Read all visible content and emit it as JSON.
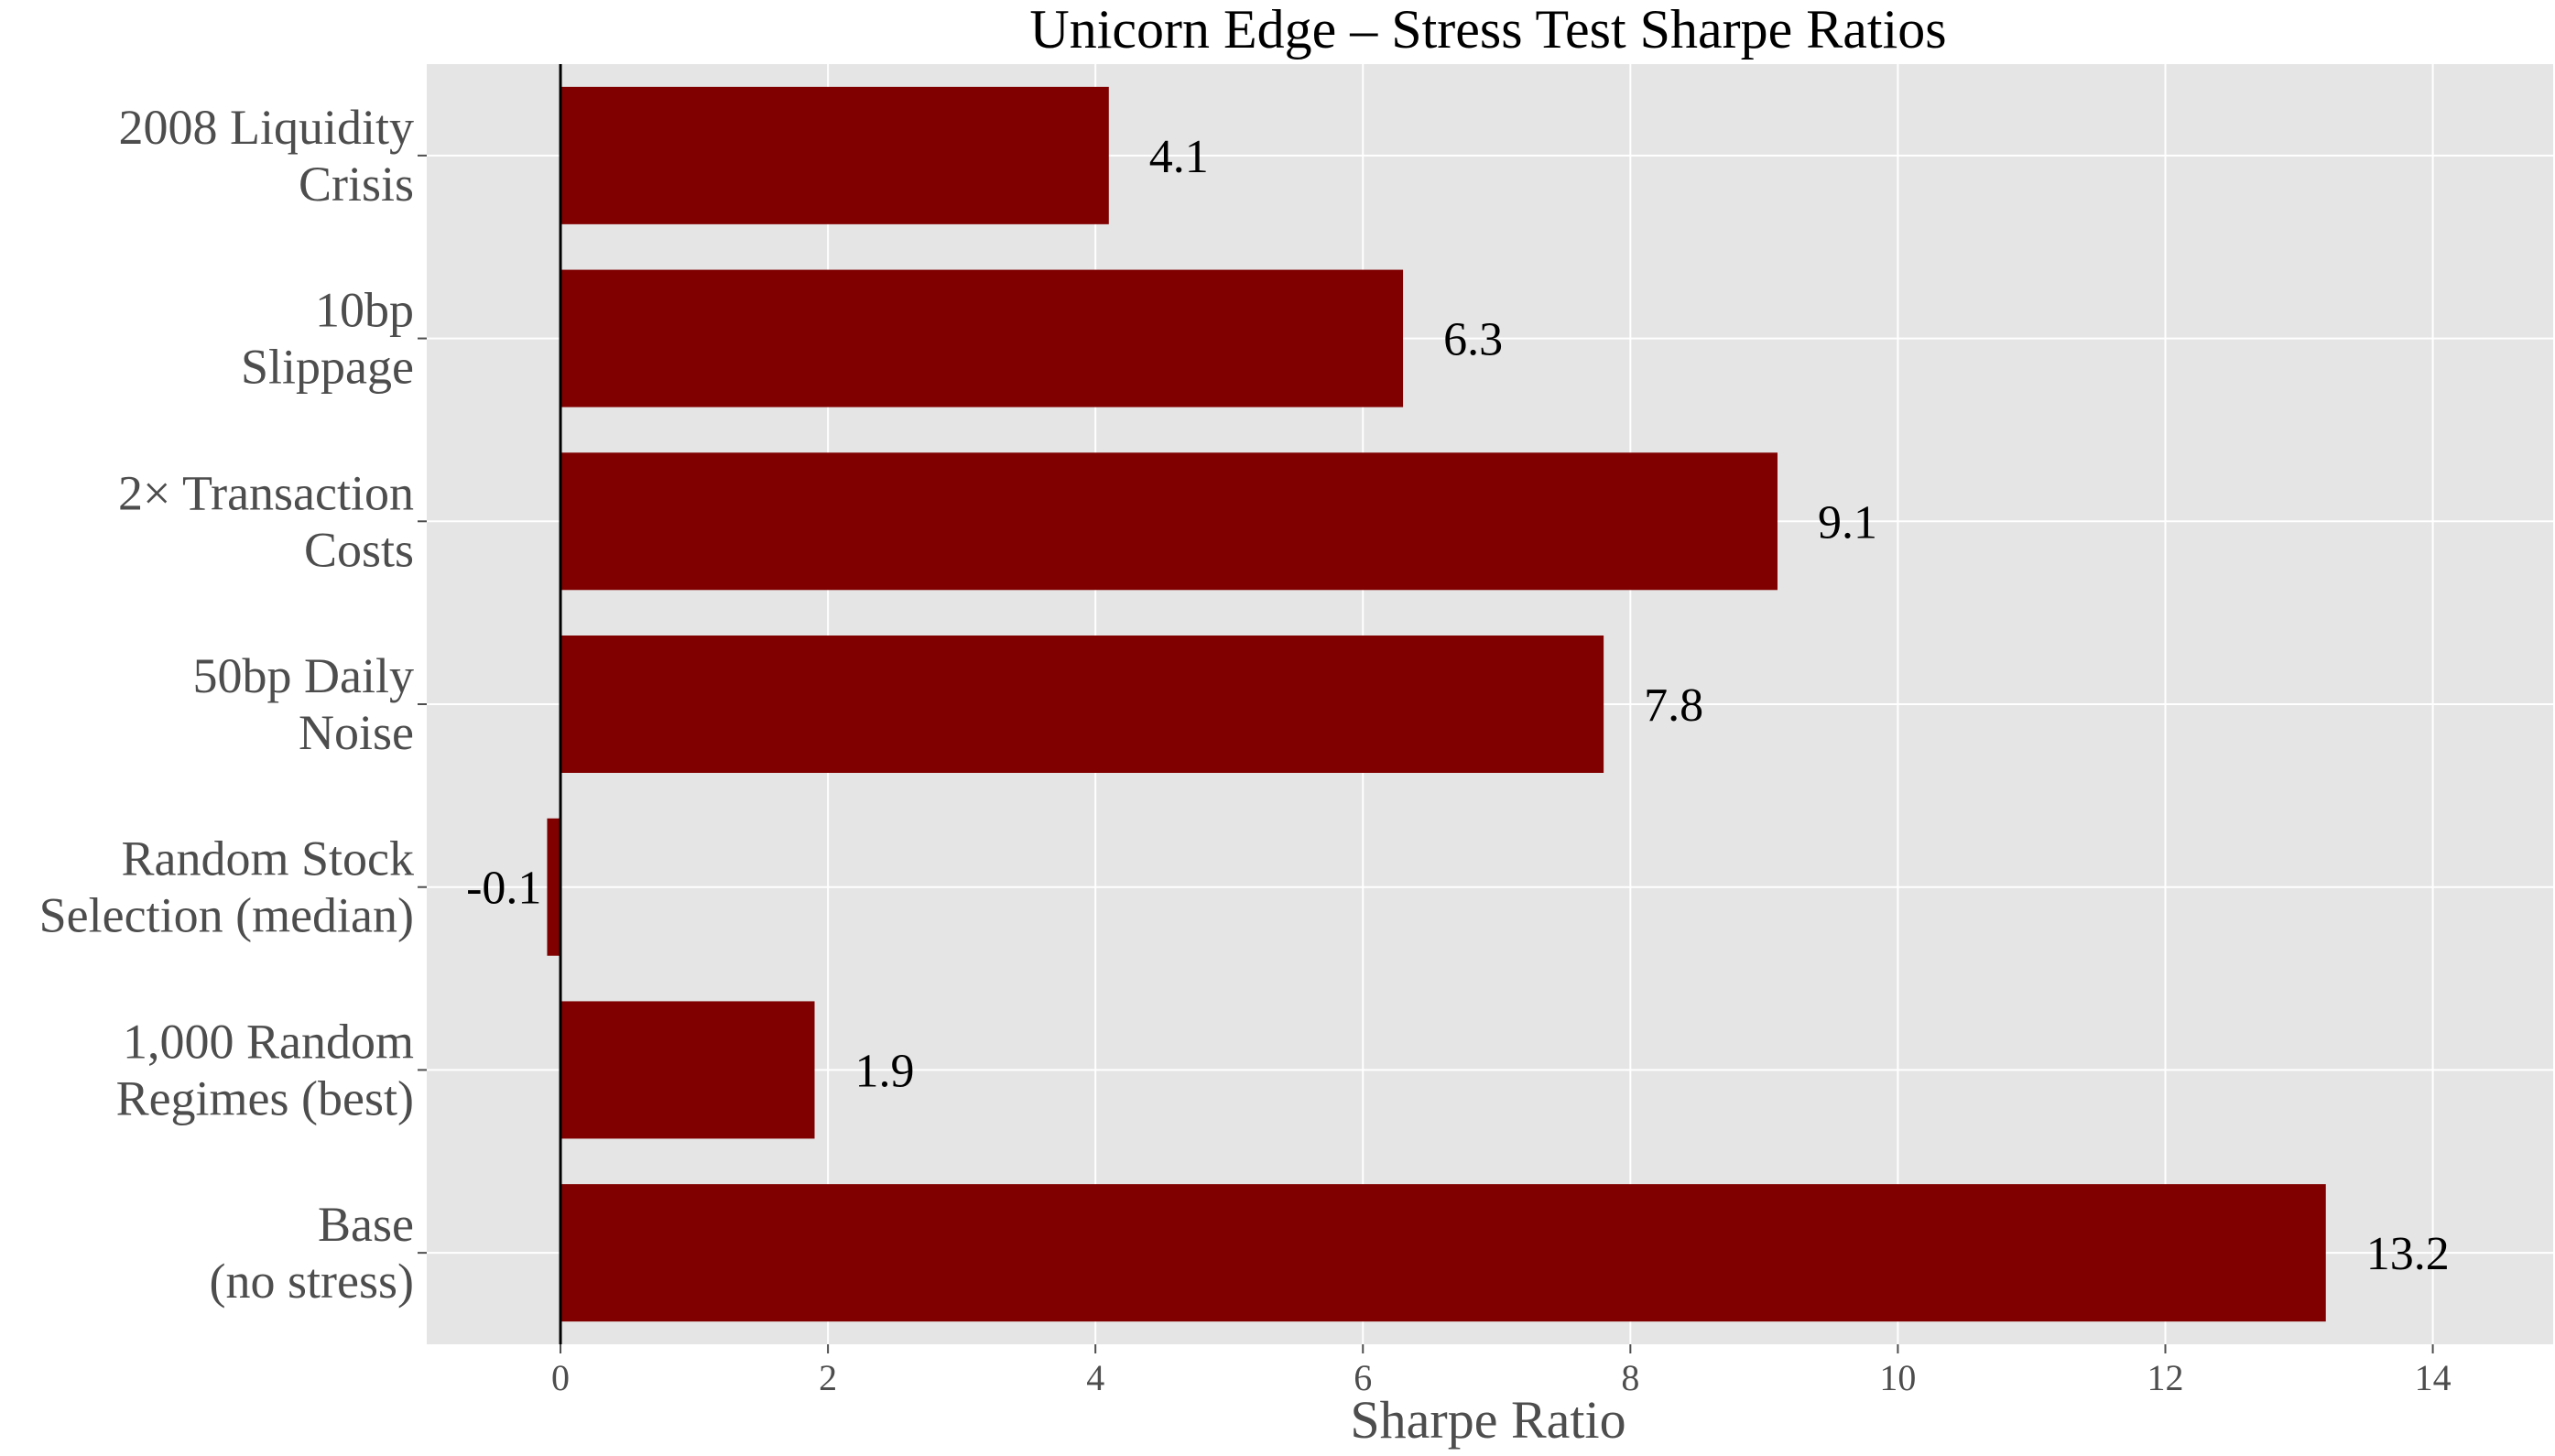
{
  "chart_data": {
    "type": "bar",
    "orientation": "horizontal",
    "title": "Unicorn Edge – Stress Test Sharpe Ratios",
    "xlabel": "Sharpe Ratio",
    "ylabel": "",
    "categories": [
      [
        "2008 Liquidity",
        "Crisis"
      ],
      [
        "10bp",
        "Slippage"
      ],
      [
        "2× Transaction",
        "Costs"
      ],
      [
        "50bp Daily",
        "Noise"
      ],
      [
        "Random Stock",
        "Selection (median)"
      ],
      [
        "1,000 Random",
        "Regimes (best)"
      ],
      [
        "Base",
        "(no stress)"
      ]
    ],
    "values": [
      4.1,
      6.3,
      9.1,
      7.8,
      -0.1,
      1.9,
      13.2
    ],
    "value_labels": [
      "4.1",
      "6.3",
      "9.1",
      "7.8",
      "-0.1",
      "1.9",
      "13.2"
    ],
    "xlim": [
      -1,
      14.9
    ],
    "xticks": [
      0,
      2,
      4,
      6,
      8,
      10,
      12,
      14
    ],
    "xtick_labels": [
      "0",
      "2",
      "4",
      "6",
      "8",
      "10",
      "12",
      "14"
    ],
    "grid": true,
    "zero_line": true,
    "colors": {
      "bar": "#800000",
      "panel": "#e5e5e5",
      "grid": "#ffffff",
      "zero_line": "#000000"
    }
  }
}
